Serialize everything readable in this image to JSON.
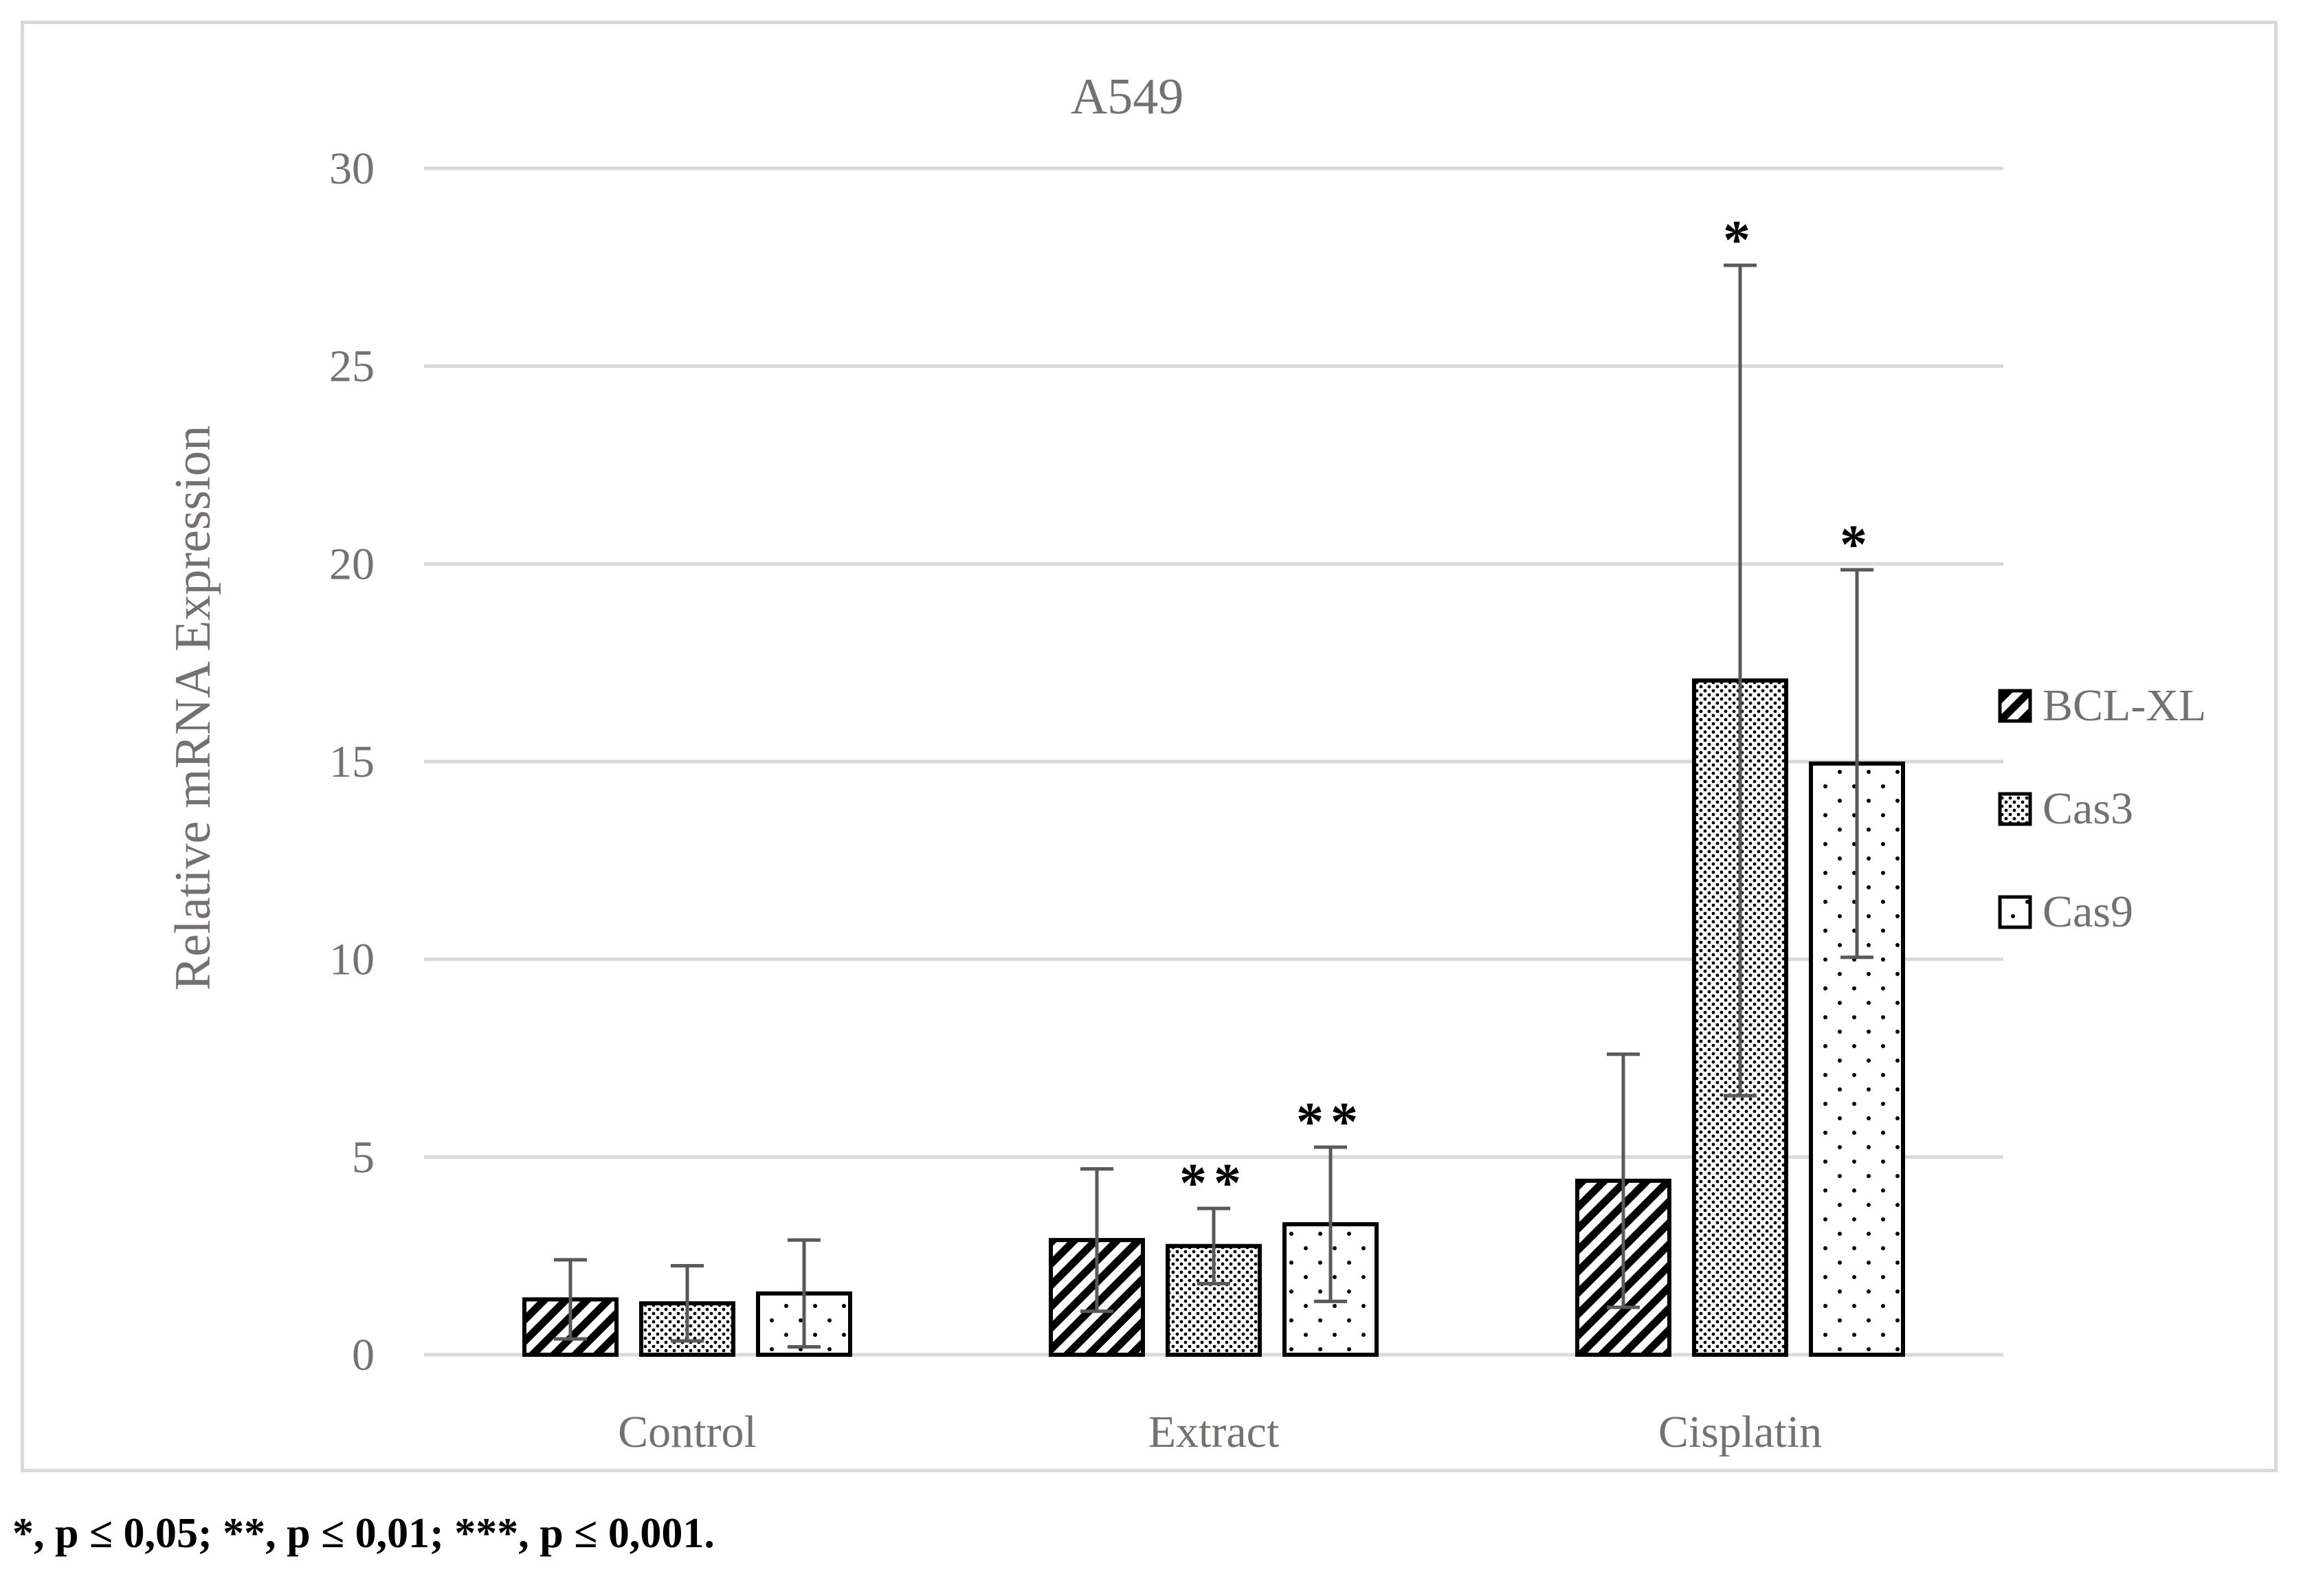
{
  "chart_data": {
    "type": "bar",
    "title": "A549",
    "xlabel": "",
    "ylabel": "Relative mRNA Expression",
    "ylim": [
      0,
      30
    ],
    "yticks": [
      0,
      5,
      10,
      15,
      20,
      25,
      30
    ],
    "grid": true,
    "legend_position": "right",
    "categories": [
      "Control",
      "Extract",
      "Cisplatin"
    ],
    "series": [
      {
        "name": "BCL-XL",
        "pattern": "diagonal-stripes",
        "values": [
          1.4,
          2.9,
          4.4
        ],
        "error": [
          1.0,
          1.8,
          3.2
        ],
        "significance": [
          "",
          "",
          ""
        ]
      },
      {
        "name": "Cas3",
        "pattern": "dense-dots",
        "values": [
          1.3,
          2.75,
          17.05
        ],
        "error": [
          0.95,
          0.95,
          10.5
        ],
        "significance": [
          "",
          "**",
          "*"
        ]
      },
      {
        "name": "Cas9",
        "pattern": "sparse-dots",
        "values": [
          1.55,
          3.3,
          14.95
        ],
        "error": [
          1.35,
          1.95,
          4.9
        ],
        "significance": [
          "",
          "**",
          "*"
        ]
      }
    ]
  },
  "footnote": "*, p ≤ 0,05; **, p ≤ 0,01; ***, p ≤ 0,001."
}
